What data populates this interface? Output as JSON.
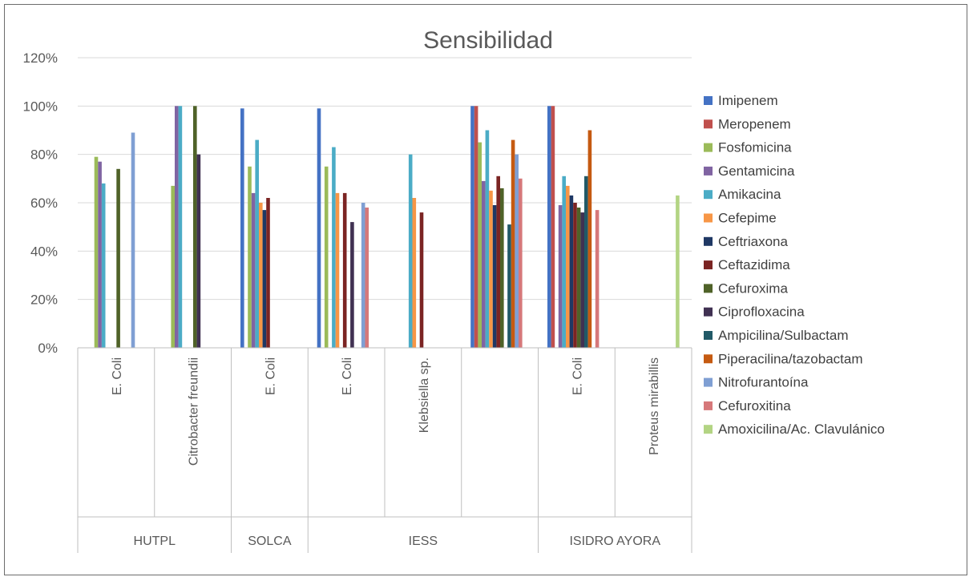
{
  "chart_data": {
    "type": "bar",
    "title": "Sensibilidad",
    "xlabel": "",
    "ylabel": "",
    "ylim": [
      0,
      1.2
    ],
    "yticks": [
      "0%",
      "20%",
      "40%",
      "60%",
      "80%",
      "100%",
      "120%"
    ],
    "grid": true,
    "legend_position": "right",
    "groups": [
      {
        "name": "HUTPL",
        "categories": [
          "E. Coli",
          "Citrobacter freundii"
        ]
      },
      {
        "name": "SOLCA",
        "categories": [
          "E. Coli"
        ]
      },
      {
        "name": "IESS",
        "categories": [
          "E. Coli",
          "Klebsiella sp.",
          ""
        ]
      },
      {
        "name": "ISIDRO AYORA",
        "categories": [
          "E. Coli",
          "Proteus mirabillis"
        ]
      }
    ],
    "series": [
      {
        "name": "Imipenem",
        "color": "#4472c4",
        "values": [
          null,
          null,
          0.99,
          0.99,
          null,
          1.0,
          1.0,
          null
        ]
      },
      {
        "name": "Meropenem",
        "color": "#c0504d",
        "values": [
          null,
          null,
          null,
          null,
          null,
          1.0,
          1.0,
          null
        ]
      },
      {
        "name": "Fosfomicina",
        "color": "#9bbb59",
        "values": [
          0.79,
          0.67,
          0.75,
          0.75,
          null,
          0.85,
          null,
          null
        ]
      },
      {
        "name": "Gentamicina",
        "color": "#8064a2",
        "values": [
          0.77,
          1.0,
          0.64,
          null,
          null,
          0.69,
          0.59,
          null
        ]
      },
      {
        "name": "Amikacina",
        "color": "#4bacc6",
        "values": [
          0.68,
          1.0,
          0.86,
          0.83,
          0.8,
          0.9,
          0.71,
          null
        ]
      },
      {
        "name": "Cefepime",
        "color": "#f79646",
        "values": [
          null,
          null,
          0.6,
          0.64,
          0.62,
          0.65,
          0.67,
          null
        ]
      },
      {
        "name": "Ceftriaxona",
        "color": "#1f3864",
        "values": [
          null,
          null,
          0.57,
          null,
          null,
          0.59,
          0.63,
          null
        ]
      },
      {
        "name": "Ceftazidima",
        "color": "#7b2423",
        "values": [
          null,
          null,
          0.62,
          0.64,
          0.56,
          0.71,
          0.6,
          null
        ]
      },
      {
        "name": "Cefuroxima",
        "color": "#4f6228",
        "values": [
          0.74,
          1.0,
          null,
          null,
          null,
          0.66,
          0.58,
          null
        ]
      },
      {
        "name": "Ciprofloxacina",
        "color": "#403152",
        "values": [
          null,
          0.8,
          null,
          0.52,
          null,
          null,
          0.56,
          null
        ]
      },
      {
        "name": "Ampicilina/Sulbactam",
        "color": "#215967",
        "values": [
          null,
          null,
          null,
          null,
          null,
          0.51,
          0.71,
          null
        ]
      },
      {
        "name": "Piperacilina/tazobactam",
        "color": "#c55a11",
        "values": [
          null,
          null,
          null,
          null,
          null,
          0.86,
          0.9,
          null
        ]
      },
      {
        "name": "Nitrofurantoína",
        "color": "#7f9fd3",
        "values": [
          0.89,
          null,
          null,
          0.6,
          null,
          0.8,
          null,
          null
        ]
      },
      {
        "name": "Cefuroxitina",
        "color": "#d6787a",
        "values": [
          null,
          null,
          null,
          0.58,
          null,
          0.7,
          0.57,
          null
        ]
      },
      {
        "name": "Amoxicilina/Ac. Clavulánico",
        "color": "#b3d483",
        "values": [
          null,
          null,
          null,
          null,
          null,
          null,
          null,
          0.63
        ]
      }
    ]
  }
}
